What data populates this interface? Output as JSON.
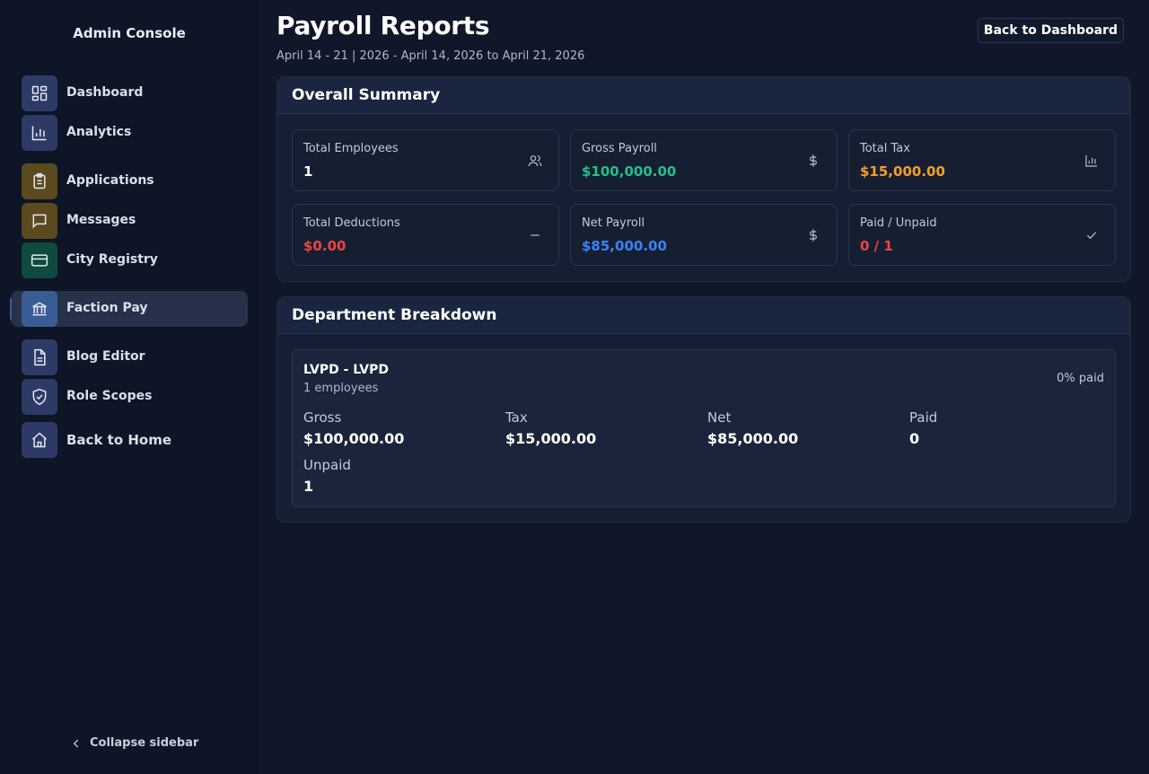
{
  "sidebar": {
    "brand": "Admin Console",
    "items": [
      {
        "label": "Dashboard",
        "icon": "dashboard-icon",
        "color": "#2e3a66"
      },
      {
        "label": "Analytics",
        "icon": "bar-chart-icon",
        "color": "#2e3a66"
      },
      {
        "label": "Applications",
        "icon": "clipboard-icon",
        "color": "#5a4a1e"
      },
      {
        "label": "Messages",
        "icon": "message-icon",
        "color": "#5a4a1e"
      },
      {
        "label": "City Registry",
        "icon": "card-icon",
        "color": "#0f4a3f"
      },
      {
        "label": "Faction Pay",
        "icon": "bank-icon",
        "color": "#3a5c94",
        "active": true
      },
      {
        "label": "Blog Editor",
        "icon": "document-icon",
        "color": "#2e3a66"
      },
      {
        "label": "Role Scopes",
        "icon": "shield-check-icon",
        "color": "#2e3a66"
      },
      {
        "label": "Back to Home",
        "icon": "home-icon",
        "color": "#2e3a66"
      }
    ],
    "collapse_label": "Collapse sidebar"
  },
  "header": {
    "title": "Payroll Reports",
    "subtitle": "April 14 - 21 | 2026 - April 14, 2026 to April 21, 2026",
    "back_button": "Back to Dashboard"
  },
  "summary": {
    "title": "Overall Summary",
    "stats": [
      {
        "label": "Total Employees",
        "value": "1",
        "color": "#ffffff",
        "icon": "users-icon"
      },
      {
        "label": "Gross Payroll",
        "value": "$100,000.00",
        "color": "#22c08a",
        "icon": "dollar-icon"
      },
      {
        "label": "Total Tax",
        "value": "$15,000.00",
        "color": "#f59e2b",
        "icon": "bar-chart-icon"
      },
      {
        "label": "Total Deductions",
        "value": "$0.00",
        "color": "#ef4444",
        "icon": "minus-icon"
      },
      {
        "label": "Net Payroll",
        "value": "$85,000.00",
        "color": "#3b82f6",
        "icon": "dollar-icon"
      },
      {
        "label": "Paid / Unpaid",
        "value": "0 / 1",
        "color": "#ef4444",
        "icon": "check-icon"
      }
    ]
  },
  "breakdown": {
    "title": "Department Breakdown",
    "departments": [
      {
        "name": "LVPD - LVPD",
        "employees": "1 employees",
        "paid_pct": "0% paid",
        "metrics": [
          {
            "label": "Gross",
            "value": "$100,000.00"
          },
          {
            "label": "Tax",
            "value": "$15,000.00"
          },
          {
            "label": "Net",
            "value": "$85,000.00"
          },
          {
            "label": "Paid",
            "value": "0"
          },
          {
            "label": "Unpaid",
            "value": "1"
          }
        ]
      }
    ]
  }
}
